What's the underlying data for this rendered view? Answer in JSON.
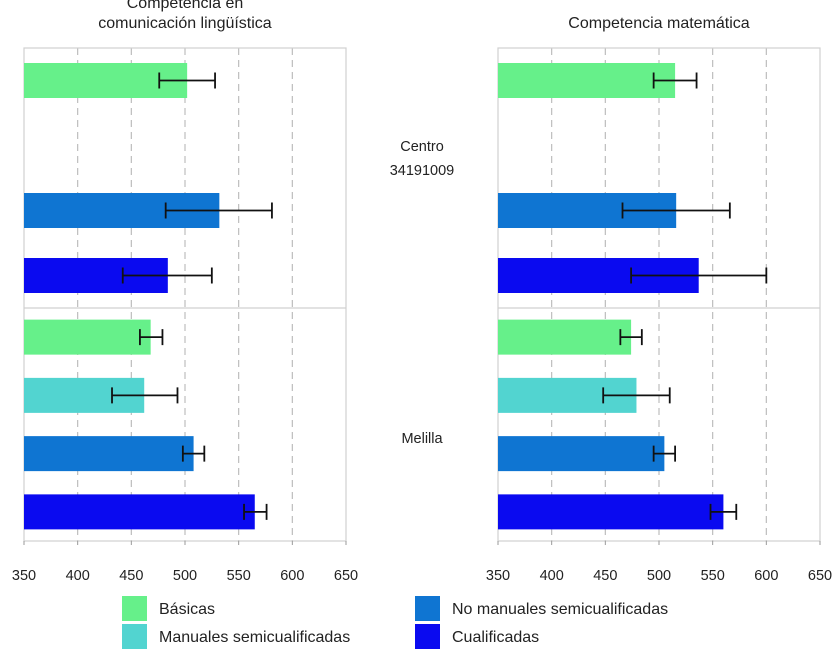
{
  "chart_data": {
    "type": "bar",
    "orientation": "horizontal",
    "xlim": [
      350,
      650
    ],
    "xticks": [
      350,
      400,
      450,
      500,
      550,
      600,
      650
    ],
    "grid": "vertical dashed",
    "groups": [
      "Centro\n34191009",
      "Melilla"
    ],
    "categories": [
      "Básicas",
      "Manuales semicualificadas",
      "No manuales semicualificadas",
      "Cualificadas"
    ],
    "colors": {
      "Básicas": "#66f08a",
      "Manuales semicualificadas": "#52d4d0",
      "No manuales semicualificadas": "#0f75d2",
      "Cualificadas": "#0a0af0"
    },
    "legend": {
      "position": "bottom",
      "items": [
        "Básicas",
        "Manuales semicualificadas",
        "No manuales semicualificadas",
        "Cualificadas"
      ]
    },
    "panels": [
      {
        "title": "Competencia en\ncomunicación lingüística",
        "series": [
          {
            "group": "Centro\n34191009",
            "category": "Básicas",
            "value": 502,
            "ci": [
              476,
              528
            ]
          },
          {
            "group": "Centro\n34191009",
            "category": "Manuales semicualificadas",
            "value": null,
            "ci": null
          },
          {
            "group": "Centro\n34191009",
            "category": "No manuales semicualificadas",
            "value": 532,
            "ci": [
              482,
              581
            ]
          },
          {
            "group": "Centro\n34191009",
            "category": "Cualificadas",
            "value": 484,
            "ci": [
              442,
              525
            ]
          },
          {
            "group": "Melilla",
            "category": "Básicas",
            "value": 468,
            "ci": [
              458,
              479
            ]
          },
          {
            "group": "Melilla",
            "category": "Manuales semicualificadas",
            "value": 462,
            "ci": [
              432,
              493
            ]
          },
          {
            "group": "Melilla",
            "category": "No manuales semicualificadas",
            "value": 508,
            "ci": [
              498,
              518
            ]
          },
          {
            "group": "Melilla",
            "category": "Cualificadas",
            "value": 565,
            "ci": [
              555,
              576
            ]
          }
        ]
      },
      {
        "title": "Competencia matemática",
        "series": [
          {
            "group": "Centro\n34191009",
            "category": "Básicas",
            "value": 515,
            "ci": [
              495,
              535
            ]
          },
          {
            "group": "Centro\n34191009",
            "category": "Manuales semicualificadas",
            "value": null,
            "ci": null
          },
          {
            "group": "Centro\n34191009",
            "category": "No manuales semicualificadas",
            "value": 516,
            "ci": [
              466,
              566
            ]
          },
          {
            "group": "Centro\n34191009",
            "category": "Cualificadas",
            "value": 537,
            "ci": [
              474,
              600
            ]
          },
          {
            "group": "Melilla",
            "category": "Básicas",
            "value": 474,
            "ci": [
              464,
              484
            ]
          },
          {
            "group": "Melilla",
            "category": "Manuales semicualificadas",
            "value": 479,
            "ci": [
              448,
              510
            ]
          },
          {
            "group": "Melilla",
            "category": "No manuales semicualificadas",
            "value": 505,
            "ci": [
              495,
              515
            ]
          },
          {
            "group": "Melilla",
            "category": "Cualificadas",
            "value": 560,
            "ci": [
              548,
              572
            ]
          }
        ]
      }
    ]
  }
}
